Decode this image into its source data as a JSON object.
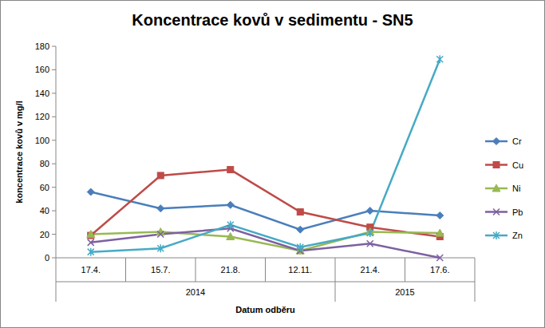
{
  "chart_data": {
    "type": "line",
    "title": "Koncentrace kovů v sedimentu - SN5",
    "x_label": "Datum odběru",
    "y_label": "koncentrace kovů v mg/l",
    "categories": [
      "17.4.",
      "15.7.",
      "21.8.",
      "12.11.",
      "21.4.",
      "17.6."
    ],
    "category_groups": [
      {
        "label": "2014",
        "count": 4
      },
      {
        "label": "2015",
        "count": 2
      }
    ],
    "series": [
      {
        "name": "Cr",
        "color": "#4a7ebb",
        "marker": "diamond",
        "values": [
          56,
          42,
          45,
          24,
          40,
          36
        ]
      },
      {
        "name": "Cu",
        "color": "#be4b48",
        "marker": "square",
        "values": [
          19,
          70,
          75,
          39,
          26,
          18
        ]
      },
      {
        "name": "Ni",
        "color": "#98b954",
        "marker": "triangle",
        "values": [
          20,
          22,
          18,
          6,
          22,
          21
        ]
      },
      {
        "name": "Pb",
        "color": "#7d60a0",
        "marker": "x",
        "values": [
          13,
          20,
          25,
          6,
          12,
          0
        ]
      },
      {
        "name": "Zn",
        "color": "#46aac5",
        "marker": "star",
        "values": [
          5,
          8,
          28,
          9,
          21,
          169
        ]
      }
    ],
    "ylim": [
      0,
      180
    ],
    "yticks": [
      0,
      20,
      40,
      60,
      80,
      100,
      120,
      140,
      160,
      180
    ],
    "grid": false,
    "legend": "right"
  }
}
